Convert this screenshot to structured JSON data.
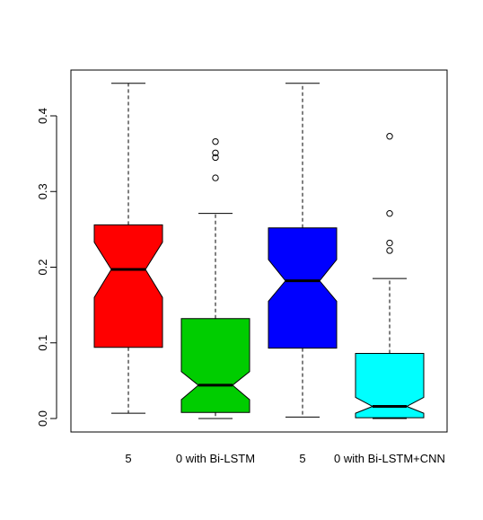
{
  "chart_data": {
    "type": "boxplot",
    "notched": true,
    "title": "",
    "xlabel": "",
    "ylabel": "",
    "ylim": [
      -0.02,
      0.455
    ],
    "yticks": [
      0.0,
      0.1,
      0.2,
      0.3,
      0.4
    ],
    "ytick_labels": [
      "0.0",
      "0.1",
      "0.2",
      "0.3",
      "0.4"
    ],
    "categories": [
      "5",
      "0 with Bi-LSTM",
      "5",
      "0 with Bi-LSTM+CNN"
    ],
    "series": [
      {
        "fill": "#ff0000",
        "min": 0.007,
        "q1": 0.094,
        "median": 0.197,
        "q3": 0.256,
        "max": 0.443,
        "notch_low": 0.16,
        "notch_high": 0.233,
        "outliers": []
      },
      {
        "fill": "#00cd00",
        "min": 0.0,
        "q1": 0.008,
        "median": 0.044,
        "q3": 0.132,
        "max": 0.271,
        "notch_low": 0.025,
        "notch_high": 0.062,
        "outliers": [
          0.366,
          0.351,
          0.345,
          0.318
        ]
      },
      {
        "fill": "#0000ff",
        "min": 0.002,
        "q1": 0.093,
        "median": 0.182,
        "q3": 0.252,
        "max": 0.443,
        "notch_low": 0.155,
        "notch_high": 0.21,
        "outliers": []
      },
      {
        "fill": "#00ffff",
        "min": 0.0,
        "q1": 0.001,
        "median": 0.016,
        "q3": 0.086,
        "max": 0.185,
        "notch_low": 0.007,
        "notch_high": 0.028,
        "outliers": [
          0.373,
          0.271,
          0.232,
          0.222
        ]
      }
    ]
  }
}
